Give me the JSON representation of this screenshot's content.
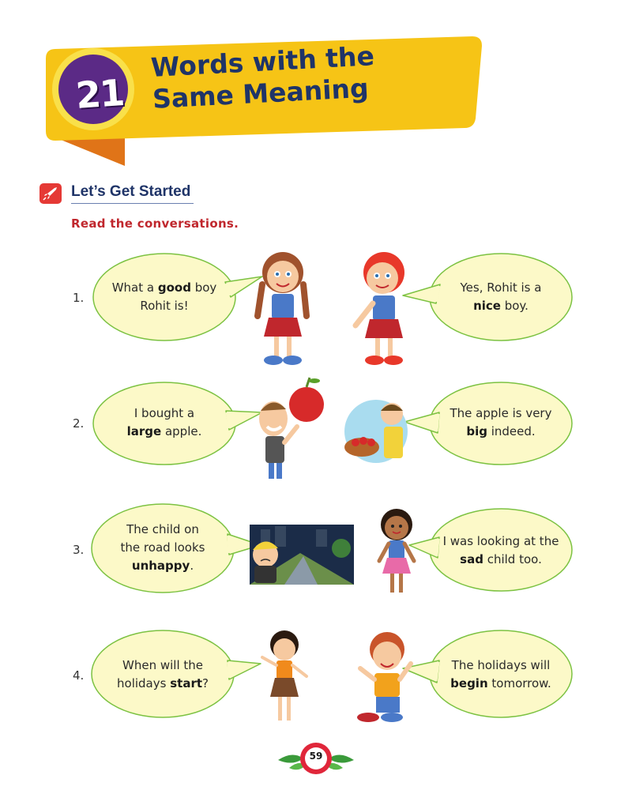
{
  "chapter": {
    "number": "21",
    "title_line1": "Words with the",
    "title_line2": "Same Meaning"
  },
  "section": {
    "title": "Let’s Get Started",
    "icon": "rocket-icon"
  },
  "instruction": "Read the conversations.",
  "conversations": [
    {
      "number": "1.",
      "left": {
        "pre": "What a ",
        "word": "good",
        "post": " boy Rohit is!"
      },
      "right": {
        "pre": "Yes, Rohit is a ",
        "word": "nice",
        "post": " boy."
      }
    },
    {
      "number": "2.",
      "left": {
        "pre": "I bought a ",
        "word": "large",
        "post": " apple."
      },
      "right": {
        "pre": "The apple is very ",
        "word": "big",
        "post": " indeed."
      }
    },
    {
      "number": "3.",
      "left": {
        "pre": "The child on the road looks ",
        "word": "unhappy",
        "post": "."
      },
      "right": {
        "pre": "I was looking at the ",
        "word": "sad",
        "post": " child too."
      }
    },
    {
      "number": "4.",
      "left": {
        "pre": "When will the holidays ",
        "word": "start",
        "post": "?"
      },
      "right": {
        "pre": "The holidays will ",
        "word": "begin",
        "post": " tomorrow."
      }
    }
  ],
  "page_number": "59",
  "colors": {
    "banner_yellow": "#f6c416",
    "banner_orange": "#f08a1c",
    "badge_purple": "#5b2a86",
    "title_navy": "#1f3468",
    "instruction_red": "#c0272d",
    "bubble_fill": "#fcf9c8",
    "bubble_stroke": "#7cc242"
  }
}
